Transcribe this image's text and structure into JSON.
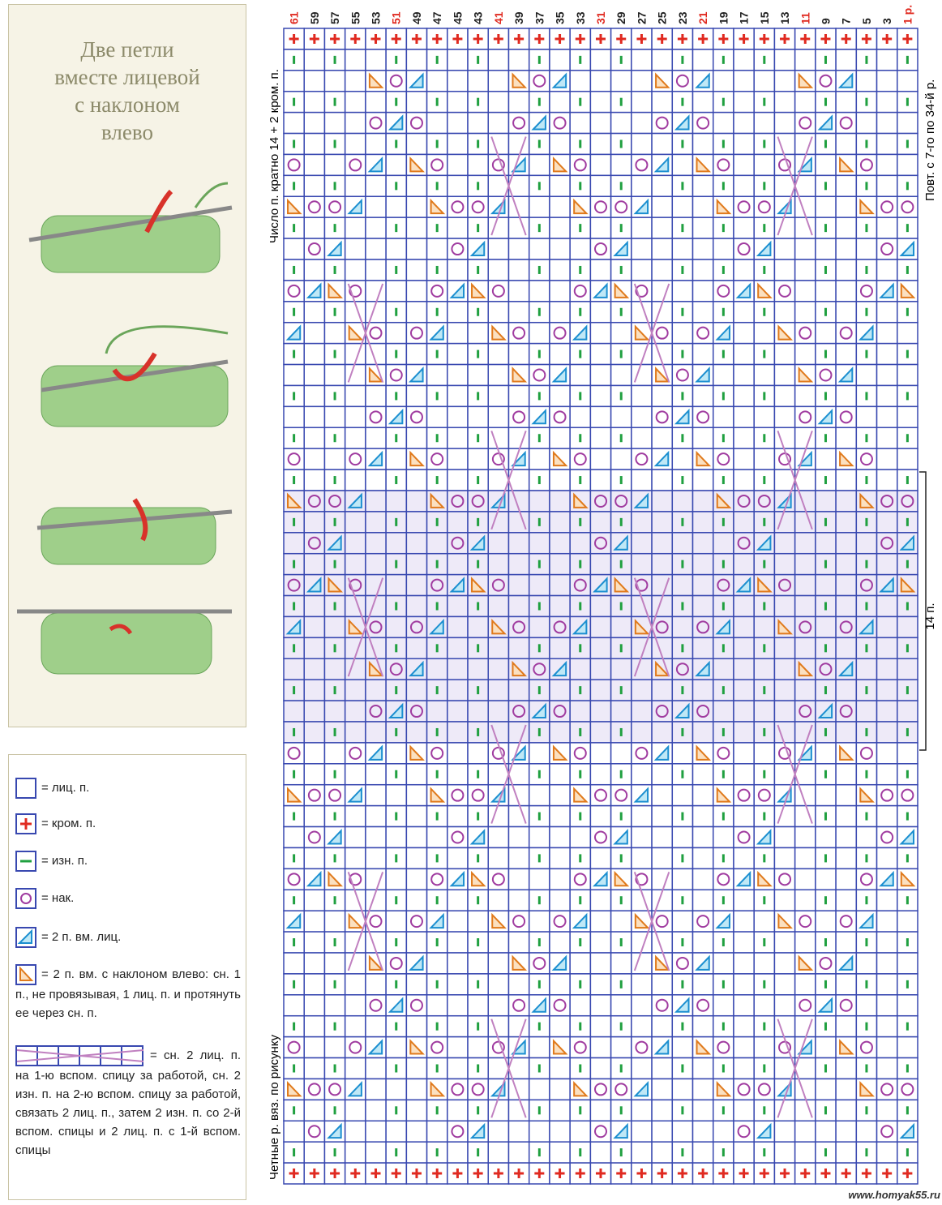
{
  "panel": {
    "title_lines": [
      "Две петли",
      "вместе лицевой",
      "с наклоном",
      "влево"
    ]
  },
  "legend": [
    {
      "text": "= лиц. п."
    },
    {
      "text": "= кром. п."
    },
    {
      "text": "= изн. п."
    },
    {
      "text": "= нак."
    },
    {
      "text": "= 2 п. вм. лиц."
    },
    {
      "text": "= 2 п. вм. с наклоном влево: сн. 1 п., не провязывая, 1 лиц. п. и протянуть ее через сн. п."
    },
    {
      "text": "= сн. 2 лиц. п. на 1-ю вспом. спицу за работой, сн. 2 изн. п. на 2-ю вспом. спицу за работой, связать 2 лиц. п., затем 2 изн. п. со 2-й вспом. спицы и 2 лиц. п. с 1-й вспом. спицы"
    }
  ],
  "chart": {
    "column_labels": [
      "61",
      "59",
      "57",
      "55",
      "53",
      "51",
      "49",
      "47",
      "45",
      "43",
      "41",
      "39",
      "37",
      "35",
      "33",
      "31",
      "29",
      "27",
      "25",
      "23",
      "21",
      "19",
      "17",
      "15",
      "13",
      "11",
      "9",
      "7",
      "5",
      "3",
      "1 р."
    ],
    "left_label_top": "Число п. кратно 14 + 2 кром. п.",
    "left_label_bottom": "Четные р. вяз. по рисунку",
    "right_label": "Повт. с 7-го по 34-й р.",
    "bracket_label": "14 п.",
    "watermark": "www.homyak55.ru"
  }
}
